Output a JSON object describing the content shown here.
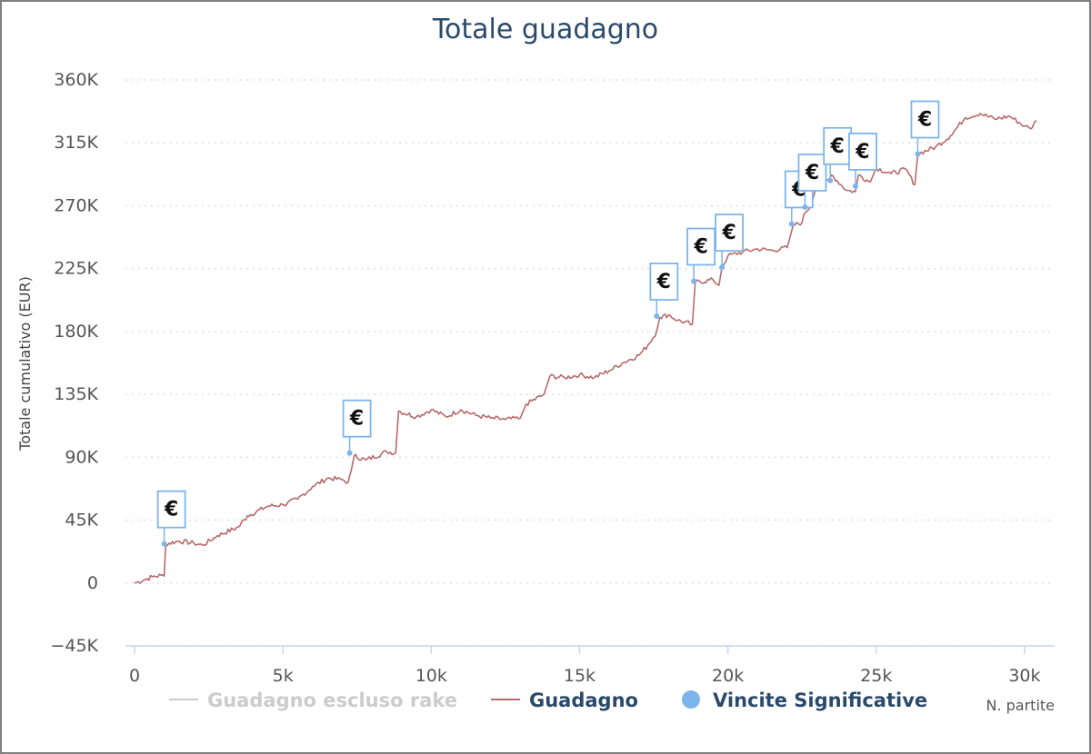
{
  "chart_data": {
    "type": "line",
    "title": "Totale guadagno",
    "xlabel": "N. partite",
    "ylabel": "Totale cumulativo (EUR)",
    "xlim": [
      0,
      30400
    ],
    "ylim": [
      -45000,
      360000
    ],
    "x_ticks": [
      {
        "value": 0,
        "label": "0"
      },
      {
        "value": 5000,
        "label": "5k"
      },
      {
        "value": 10000,
        "label": "10k"
      },
      {
        "value": 15000,
        "label": "15k"
      },
      {
        "value": 20000,
        "label": "20k"
      },
      {
        "value": 25000,
        "label": "25k"
      },
      {
        "value": 30000,
        "label": "30k"
      }
    ],
    "y_ticks": [
      {
        "value": 360000,
        "label": "360K"
      },
      {
        "value": 315000,
        "label": "315K"
      },
      {
        "value": 270000,
        "label": "270K"
      },
      {
        "value": 225000,
        "label": "225K"
      },
      {
        "value": 180000,
        "label": "180K"
      },
      {
        "value": 135000,
        "label": "135K"
      },
      {
        "value": 90000,
        "label": "90K"
      },
      {
        "value": 45000,
        "label": "45K"
      },
      {
        "value": 0,
        "label": "0"
      },
      {
        "value": -45000,
        "label": "−45K"
      }
    ],
    "grid": "horizontal dotted",
    "legend_position": "bottom",
    "legend": [
      {
        "name": "Guadagno escluso rake",
        "color": "#cccccc",
        "marker": "line",
        "hidden": true
      },
      {
        "name": "Guadagno",
        "color": "#b86b6b",
        "marker": "line"
      },
      {
        "name": "Vincite Significative",
        "color": "#7cb5ec",
        "marker": "dot"
      }
    ],
    "series": [
      {
        "name": "Guadagno",
        "color": "#b86b6b",
        "points": [
          [
            0,
            0
          ],
          [
            300,
            2000
          ],
          [
            600,
            4500
          ],
          [
            900,
            5500
          ],
          [
            1000,
            5000
          ],
          [
            1050,
            28000
          ],
          [
            1500,
            30000
          ],
          [
            2000,
            28500
          ],
          [
            2300,
            27000
          ],
          [
            2800,
            34000
          ],
          [
            3500,
            40000
          ],
          [
            3800,
            48000
          ],
          [
            4500,
            55000
          ],
          [
            5000,
            56000
          ],
          [
            5500,
            60000
          ],
          [
            6000,
            69000
          ],
          [
            6500,
            75000
          ],
          [
            7000,
            74000
          ],
          [
            7200,
            72000
          ],
          [
            7300,
            80000
          ],
          [
            7400,
            91000
          ],
          [
            7800,
            88000
          ],
          [
            8500,
            94000
          ],
          [
            8800,
            93000
          ],
          [
            8900,
            123000
          ],
          [
            9500,
            119000
          ],
          [
            10000,
            124000
          ],
          [
            10500,
            119000
          ],
          [
            11000,
            124000
          ],
          [
            11500,
            120000
          ],
          [
            12000,
            118000
          ],
          [
            12500,
            117000
          ],
          [
            13000,
            118000
          ],
          [
            13200,
            128000
          ],
          [
            13800,
            135000
          ],
          [
            14000,
            148000
          ],
          [
            14500,
            147000
          ],
          [
            15000,
            149000
          ],
          [
            15500,
            147000
          ],
          [
            16000,
            152000
          ],
          [
            16500,
            158000
          ],
          [
            17000,
            163000
          ],
          [
            17300,
            170000
          ],
          [
            17600,
            180000
          ],
          [
            17700,
            190000
          ],
          [
            18000,
            192000
          ],
          [
            18300,
            188000
          ],
          [
            18800,
            185000
          ],
          [
            18900,
            215000
          ],
          [
            19500,
            217000
          ],
          [
            19700,
            213000
          ],
          [
            19800,
            226000
          ],
          [
            20000,
            234000
          ],
          [
            20500,
            237000
          ],
          [
            21000,
            239000
          ],
          [
            21500,
            238000
          ],
          [
            22000,
            240000
          ],
          [
            22200,
            256000
          ],
          [
            22500,
            258000
          ],
          [
            22600,
            265000
          ],
          [
            22800,
            270000
          ],
          [
            23000,
            285000
          ],
          [
            23400,
            288000
          ],
          [
            23500,
            292000
          ],
          [
            24000,
            281000
          ],
          [
            24300,
            280000
          ],
          [
            24400,
            292000
          ],
          [
            24800,
            287000
          ],
          [
            25000,
            297000
          ],
          [
            25500,
            293000
          ],
          [
            26000,
            296000
          ],
          [
            26300,
            285000
          ],
          [
            26400,
            307000
          ],
          [
            27000,
            312000
          ],
          [
            27500,
            320000
          ],
          [
            28000,
            333000
          ],
          [
            28500,
            336000
          ],
          [
            29000,
            332000
          ],
          [
            29500,
            334000
          ],
          [
            30000,
            327000
          ],
          [
            30200,
            325000
          ],
          [
            30400,
            331000
          ]
        ]
      }
    ],
    "significant_wins": {
      "name": "Vincite Significative",
      "color": "#7cb5ec",
      "label": "€",
      "points": [
        [
          1000,
          28000
        ],
        [
          7250,
          93000
        ],
        [
          17600,
          191000
        ],
        [
          18850,
          216000
        ],
        [
          19800,
          226000
        ],
        [
          22150,
          257000
        ],
        [
          22600,
          269000
        ],
        [
          23450,
          288000
        ],
        [
          24300,
          284000
        ],
        [
          26400,
          307000
        ]
      ]
    }
  }
}
